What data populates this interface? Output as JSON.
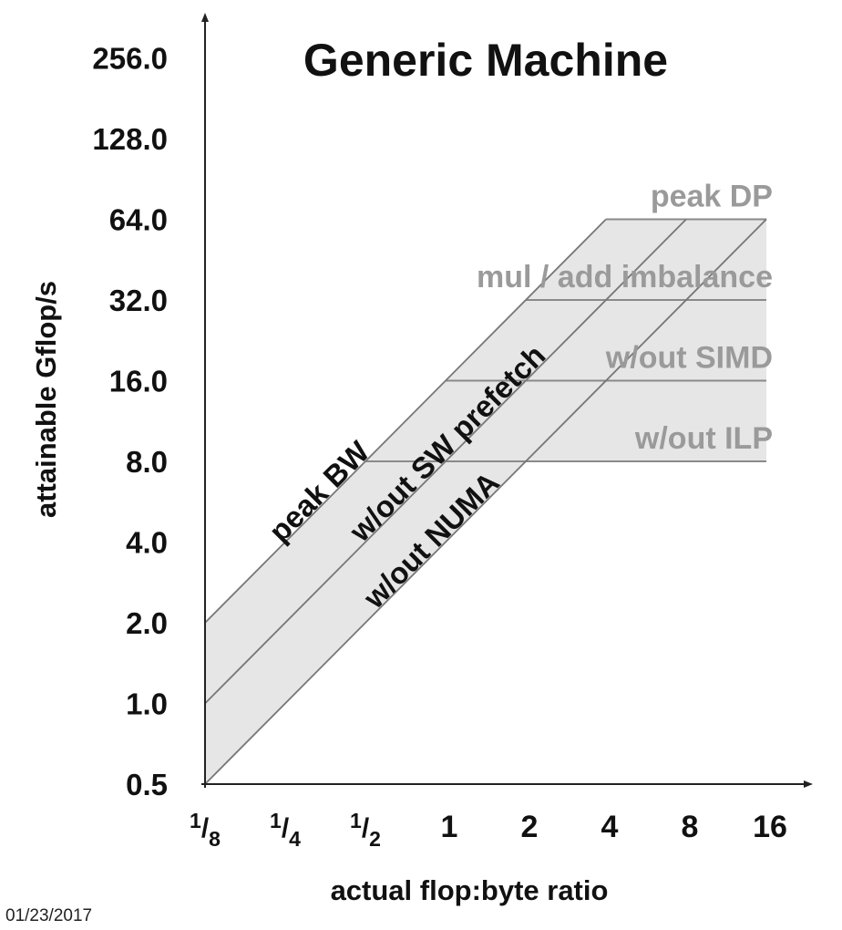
{
  "chart_data": {
    "type": "line",
    "title": "Generic Machine",
    "xlabel": "actual flop:byte ratio",
    "ylabel": "attainable Gflop/s",
    "x_scale": "log2",
    "y_scale": "log2",
    "xlim": [
      0.125,
      16
    ],
    "ylim": [
      0.5,
      256
    ],
    "x_ticks": [
      {
        "value": 0.125,
        "num": "1",
        "den": "8"
      },
      {
        "value": 0.25,
        "num": "1",
        "den": "4"
      },
      {
        "value": 0.5,
        "num": "1",
        "den": "2"
      },
      {
        "value": 1,
        "label": "1"
      },
      {
        "value": 2,
        "label": "2"
      },
      {
        "value": 4,
        "label": "4"
      },
      {
        "value": 8,
        "label": "8"
      },
      {
        "value": 16,
        "label": "16"
      }
    ],
    "y_ticks": [
      {
        "value": 0.5,
        "label": "0.5"
      },
      {
        "value": 1,
        "label": "1.0"
      },
      {
        "value": 2,
        "label": "2.0"
      },
      {
        "value": 4,
        "label": "4.0"
      },
      {
        "value": 8,
        "label": "8.0"
      },
      {
        "value": 16,
        "label": "16.0"
      },
      {
        "value": 32,
        "label": "32.0"
      },
      {
        "value": 64,
        "label": "64.0"
      },
      {
        "value": 128,
        "label": "128.0"
      },
      {
        "value": 256,
        "label": "256.0"
      }
    ],
    "bandwidth_ceilings": [
      {
        "name": "peak BW",
        "x": [
          0.125,
          4
        ],
        "y": [
          2,
          64
        ]
      },
      {
        "name": "w/out SW prefetch",
        "x": [
          0.125,
          8
        ],
        "y": [
          1,
          64
        ]
      },
      {
        "name": "w/out NUMA",
        "x": [
          0.125,
          16
        ],
        "y": [
          0.5,
          64
        ]
      }
    ],
    "compute_ceilings": [
      {
        "name": "peak DP",
        "y": 64,
        "x_start": 4
      },
      {
        "name": "mul / add imbalance",
        "y": 32,
        "x_start": 2
      },
      {
        "name": "w/out SIMD",
        "y": 16,
        "x_start": 1
      },
      {
        "name": "w/out ILP",
        "y": 8,
        "x_start": 0.5
      }
    ],
    "grid": false,
    "shaded_region": true,
    "colors": {
      "ceiling_line": "#8a8a8a",
      "shade": "#e6e6e6",
      "compute_label": "#9a9a9a",
      "bandwidth_label": "#111111",
      "axis": "#222222"
    }
  },
  "footer": {
    "date": "01/23/2017"
  }
}
